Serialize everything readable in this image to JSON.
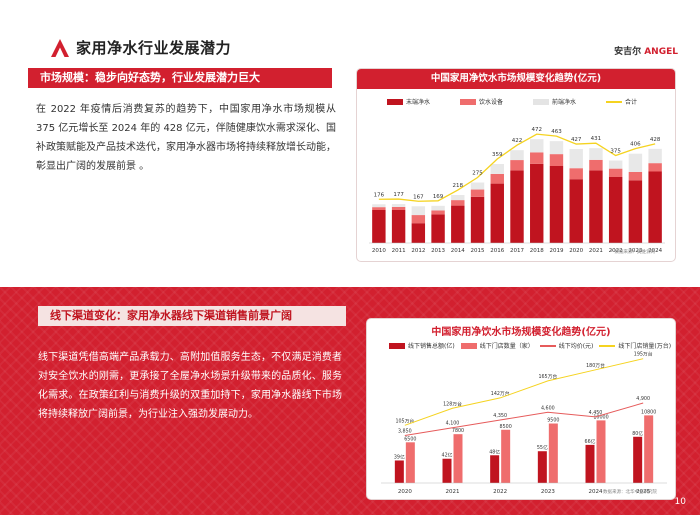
{
  "header": {
    "title": "家用净水行业发展潜力",
    "brand_main": "安吉尔",
    "brand_sub": "ANGEL"
  },
  "section1": {
    "heading": "市场规模：稳步向好态势，行业发展潜力巨大",
    "paragraph": "在 2022 年疫情后消费复苏的趋势下，中国家用净水市场规模从 375 亿元增长至 2024 年的 428 亿元，伴随健康饮水需求深化、国补政策赋能及产品技术迭代，家用净水器市场将持续释放增长动能，彰显出广阔的发展前景 。"
  },
  "section2": {
    "heading": "线下渠道变化：家用净水器线下渠道销售前景广阔",
    "paragraph": "线下渠道凭借高端产品承载力、高附加值服务生态，不仅满足消费者对安全饮水的刚需，更承接了全屋净水场景升级带来的品质化、服务化需求。在政策红利与消费升级的双重加持下，家用净水器线下市场将持续释放广阔前景，为行业注入强劲发展动力。"
  },
  "page_number": "10",
  "chart_data": [
    {
      "type": "bar",
      "title": "中国家用净饮水市场规模变化趋势(亿元)",
      "legend": [
        "末端净水",
        "饮水设备",
        "前端净水",
        "合计"
      ],
      "categories": [
        "2010",
        "2011",
        "2012",
        "2013",
        "2014",
        "2015",
        "2016",
        "2017",
        "2018",
        "2019",
        "2020",
        "2021",
        "2022",
        "2023",
        "2024"
      ],
      "series": [
        {
          "name": "末端净水",
          "values": [
            150,
            150,
            90,
            130,
            170,
            210,
            270,
            330,
            360,
            350,
            290,
            330,
            300,
            285,
            325
          ]
        },
        {
          "name": "饮水设备",
          "values": [
            13,
            14,
            37,
            18,
            25,
            33,
            44,
            47,
            52,
            54,
            50,
            48,
            38,
            38,
            38
          ]
        },
        {
          "name": "前端净水",
          "values": [
            13,
            13,
            40,
            21,
            23,
            32,
            45,
            45,
            60,
            59,
            87,
            53,
            37,
            83,
            65
          ]
        },
        {
          "name": "合计",
          "values": [
            176,
            177,
            167,
            169,
            218,
            275,
            359,
            422,
            472,
            463,
            427,
            431,
            375,
            406,
            428
          ]
        }
      ],
      "total_labels": [
        "176",
        "177",
        "167",
        "169",
        "218",
        "275",
        "359",
        "422",
        "472",
        "463",
        "427",
        "431",
        "375",
        "406",
        "428"
      ],
      "ylim": [
        0,
        500
      ],
      "source": "* 数据来源：奥维云网",
      "colors": {
        "end": "#c0141f",
        "equip": "#ef6d6d",
        "front": "#e8e8e8",
        "total": "#f5d320"
      }
    },
    {
      "type": "bar",
      "title": "中国家用净饮水市场规模变化趋势(亿元)",
      "legend": [
        "线下销售总额(亿)",
        "线下门店数量（家）",
        "线下均价(元)",
        "线下门店销量(万台)"
      ],
      "categories": [
        "2020",
        "2021",
        "2022",
        "2023",
        "2024",
        "2025"
      ],
      "series": [
        {
          "name": "线下销售总额(亿)",
          "values": [
            39,
            42,
            48,
            55,
            66,
            80
          ],
          "labels": [
            "39亿",
            "42亿",
            "48亿",
            "55亿",
            "66亿",
            "80亿"
          ]
        },
        {
          "name": "线下门店数量（家）",
          "values": [
            6500,
            7800,
            8500,
            9500,
            10000,
            10800
          ],
          "labels": [
            "6500",
            "7800",
            "8500",
            "9500",
            "10000",
            "10800"
          ]
        },
        {
          "name": "线下均价(元)",
          "values": [
            3850,
            4100,
            4350,
            4600,
            4450,
            4900
          ],
          "labels": [
            "3,850",
            "4,100",
            "4,350",
            "4,600",
            "4,450",
            "4,900"
          ]
        },
        {
          "name": "线下门店销量(万台)",
          "values": [
            105,
            128,
            142,
            165,
            180,
            195
          ],
          "labels": [
            "105万台",
            "128万台",
            "142万台",
            "165万台",
            "180万台",
            "195万台"
          ]
        }
      ],
      "source": "数据来源：北华中金研究院",
      "colors": {
        "sales": "#c0141f",
        "stores": "#ef6d6d",
        "price": "#e65b5b",
        "volume": "#f5d320"
      }
    }
  ]
}
